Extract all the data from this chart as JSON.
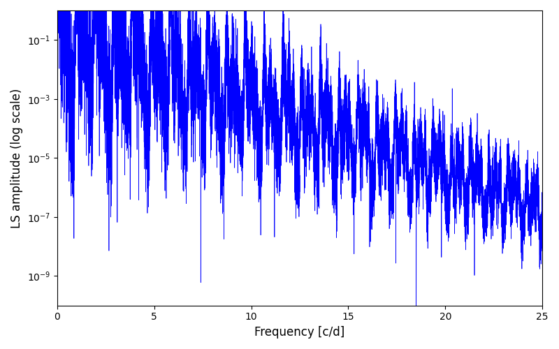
{
  "xlabel": "Frequency [c/d]",
  "ylabel": "LS amplitude (log scale)",
  "xlim": [
    0,
    25
  ],
  "ylim": [
    1e-10,
    1.0
  ],
  "line_color": "#0000FF",
  "line_width": 0.5,
  "background_color": "#ffffff",
  "figsize": [
    8.0,
    5.0
  ],
  "dpi": 100,
  "yscale": "log",
  "yticks": [
    1e-09,
    1e-07,
    1e-05,
    0.001,
    0.1
  ],
  "xticks": [
    0,
    5,
    10,
    15,
    20,
    25
  ],
  "seed": 12345
}
